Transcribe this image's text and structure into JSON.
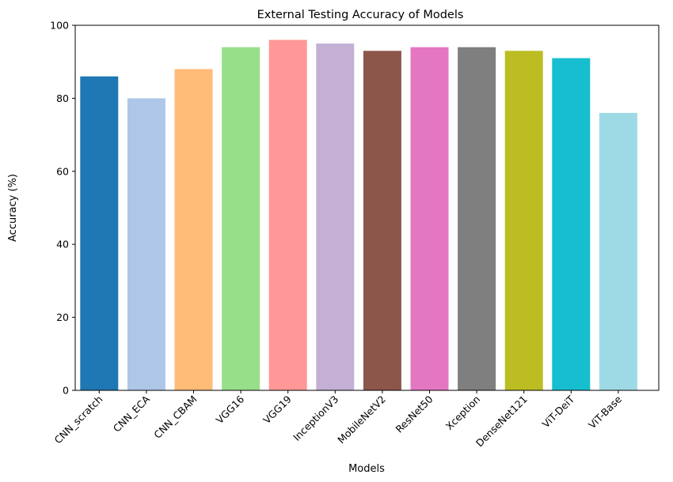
{
  "chart_data": {
    "type": "bar",
    "title": "External Testing Accuracy of Models",
    "xlabel": "Models",
    "ylabel": "Accuracy (%)",
    "ylim": [
      0,
      100
    ],
    "yticks": [
      0,
      20,
      40,
      60,
      80,
      100
    ],
    "grid": false,
    "categories": [
      "CNN_scratch",
      "CNN_ECA",
      "CNN_CBAM",
      "VGG16",
      "VGG19",
      "InceptionV3",
      "MobileNetV2",
      "ResNet50",
      "Xception",
      "DenseNet121",
      "ViT-DeiT",
      "ViT-Base"
    ],
    "values": [
      86,
      80,
      88,
      94,
      96,
      95,
      93,
      94,
      94,
      93,
      91,
      76
    ],
    "colors": [
      "#1f77b4",
      "#aec7e8",
      "#ffbb78",
      "#98df8a",
      "#ff9896",
      "#c5b0d5",
      "#8c564b",
      "#e377c2",
      "#7f7f7f",
      "#bcbd22",
      "#17becf",
      "#9edae5"
    ]
  }
}
